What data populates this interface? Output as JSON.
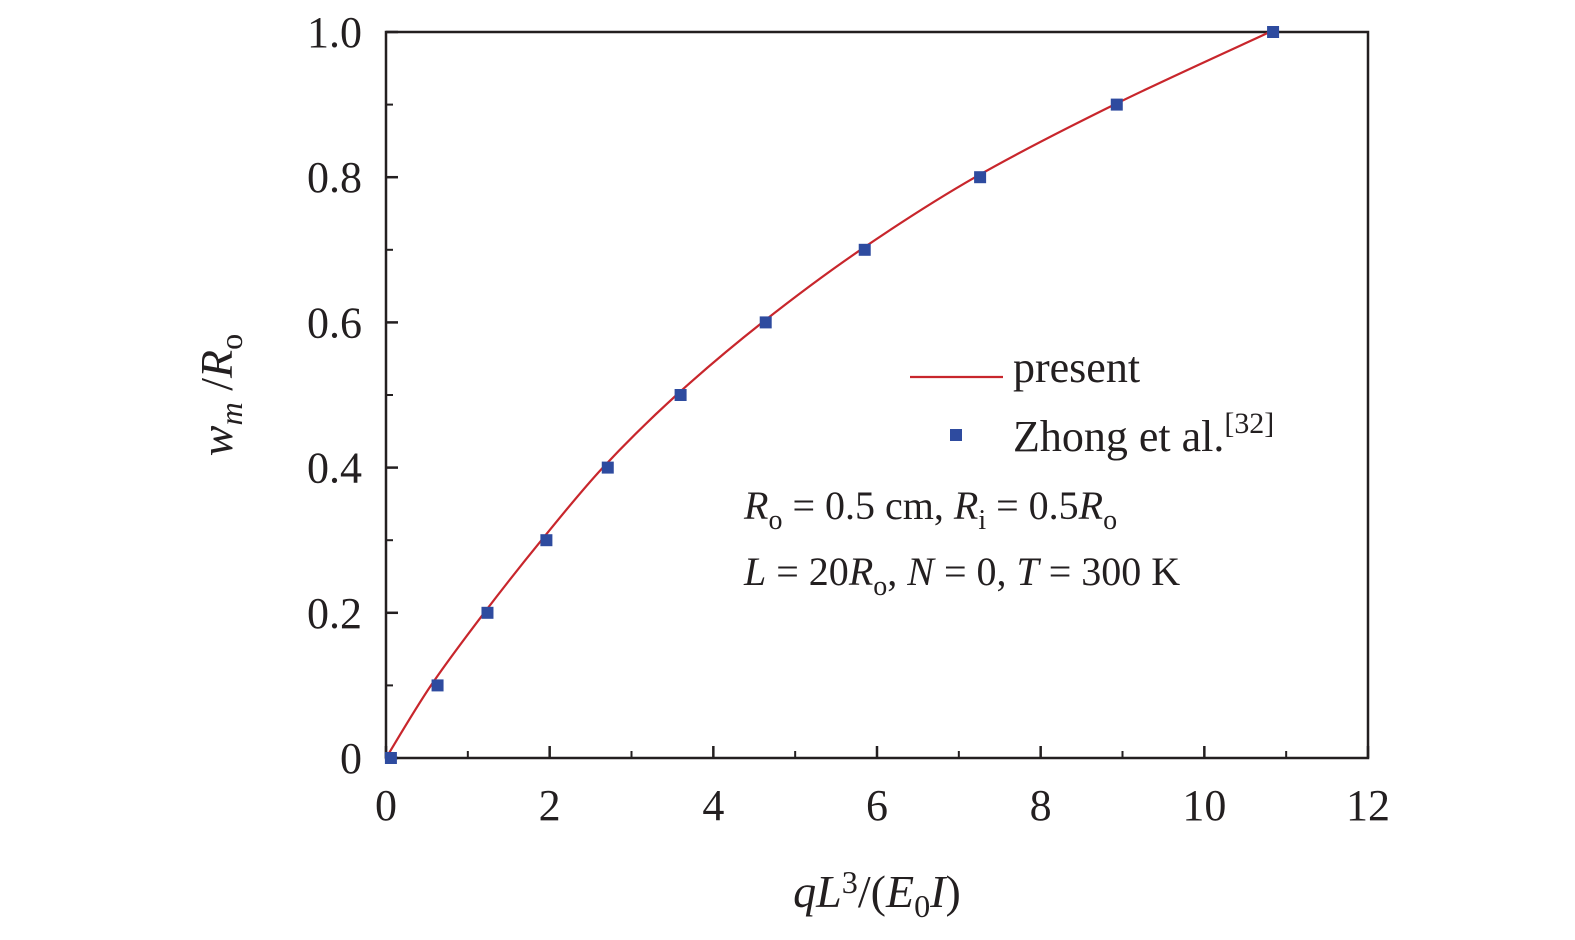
{
  "chart_data": {
    "type": "line",
    "xlabel": {
      "parts": [
        {
          "t": "q",
          "italic": true
        },
        {
          "t": "L",
          "italic": true
        },
        {
          "t": "3",
          "sup": true
        },
        {
          "t": "/(",
          "italic": false
        },
        {
          "t": "E",
          "italic": true
        },
        {
          "t": "0",
          "sub": true
        },
        {
          "t": "I",
          "italic": true
        },
        {
          "t": ")",
          "italic": false
        }
      ]
    },
    "ylabel": {
      "parts": [
        {
          "t": "w",
          "italic": true
        },
        {
          "t": "m",
          "italic": true,
          "sub": true
        },
        {
          "t": " /",
          "italic": false
        },
        {
          "t": "R",
          "italic": true
        },
        {
          "t": "o",
          "sub": true
        }
      ]
    },
    "xlim": [
      0,
      12
    ],
    "ylim": [
      0,
      1.0
    ],
    "xticks": [
      0,
      2,
      4,
      6,
      8,
      10,
      12
    ],
    "yticks": [
      0,
      0.2,
      0.4,
      0.6,
      0.8,
      1.0
    ],
    "xtick_labels": [
      "0",
      "2",
      "4",
      "6",
      "8",
      "10",
      "12"
    ],
    "ytick_labels": [
      "0",
      "0.2",
      "0.4",
      "0.6",
      "0.8",
      "1.0"
    ],
    "grid": false,
    "legend_position": "center-right",
    "series": [
      {
        "name": "present",
        "kind": "line",
        "color": "#c8262c",
        "x": [
          0,
          0.55,
          1.2,
          1.9,
          2.65,
          3.55,
          4.6,
          5.8,
          7.2,
          8.9,
          10.8
        ],
        "y": [
          0,
          0.1,
          0.2,
          0.3,
          0.4,
          0.5,
          0.6,
          0.7,
          0.8,
          0.9,
          1.0
        ]
      },
      {
        "name": "Zhong et al.",
        "name_sup": "[32]",
        "kind": "scatter",
        "color": "#2e4b9f",
        "x": [
          0.06,
          0.63,
          1.24,
          1.96,
          2.71,
          3.6,
          4.64,
          5.85,
          7.26,
          8.93,
          10.84
        ],
        "y": [
          0,
          0.1,
          0.2,
          0.3,
          0.4,
          0.5,
          0.6,
          0.7,
          0.8,
          0.9,
          1.0
        ]
      }
    ],
    "annotations": [
      {
        "parts": [
          {
            "t": "R",
            "italic": true
          },
          {
            "t": "o",
            "sub": true
          },
          {
            "t": " = 0.5 cm, "
          },
          {
            "t": "R",
            "italic": true
          },
          {
            "t": "i",
            "sub": true
          },
          {
            "t": " = 0.5"
          },
          {
            "t": "R",
            "italic": true
          },
          {
            "t": "o",
            "sub": true
          }
        ]
      },
      {
        "parts": [
          {
            "t": "L",
            "italic": true
          },
          {
            "t": " = 20"
          },
          {
            "t": "R",
            "italic": true
          },
          {
            "t": "o",
            "sub": true
          },
          {
            "t": ", "
          },
          {
            "t": "N",
            "italic": true
          },
          {
            "t": " = 0, "
          },
          {
            "t": "T",
            "italic": true
          },
          {
            "t": " = 300 K"
          }
        ]
      }
    ]
  }
}
